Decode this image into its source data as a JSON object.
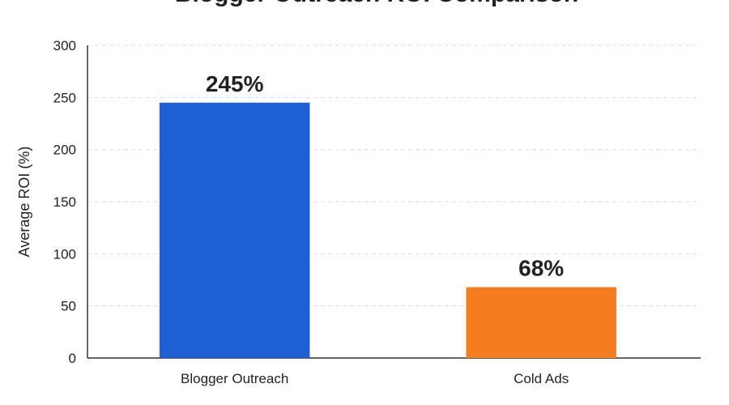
{
  "chart_data": {
    "type": "bar",
    "title": "Blogger Outreach ROI Comparison",
    "y_label": "Average ROI (%)",
    "categories": [
      "Blogger Outreach",
      "Cold Ads"
    ],
    "values": [
      245,
      68
    ],
    "value_labels": [
      "245%",
      "68%"
    ],
    "colors": [
      "#1f5fd6",
      "#f57c1f"
    ],
    "ylim": [
      0,
      300
    ],
    "yticks": [
      0,
      50,
      100,
      150,
      200,
      250,
      300
    ],
    "grid": true
  }
}
